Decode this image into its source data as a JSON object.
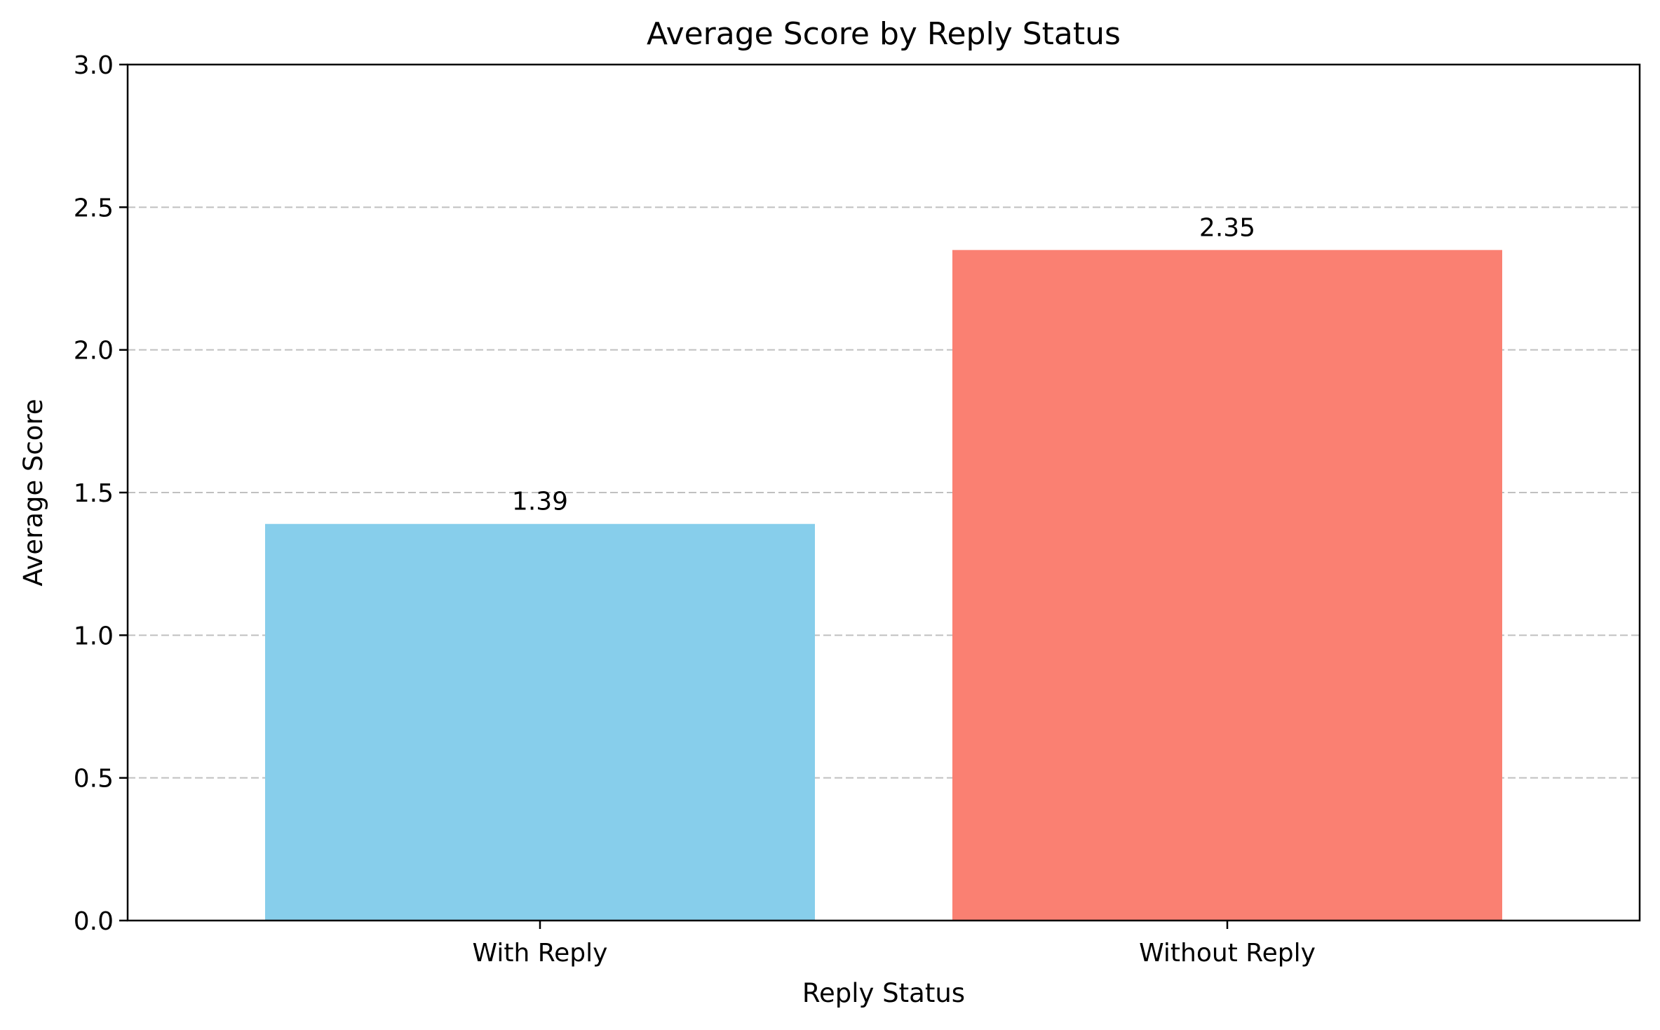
{
  "chart_data": {
    "type": "bar",
    "title": "Average Score by Reply Status",
    "xlabel": "Reply Status",
    "ylabel": "Average Score",
    "categories": [
      "With Reply",
      "Without Reply"
    ],
    "values": [
      1.39,
      2.35
    ],
    "value_labels": [
      "1.39",
      "2.35"
    ],
    "colors": [
      "#87CEEB",
      "#FA8072"
    ],
    "ylim": [
      0,
      3.0
    ],
    "yticks": [
      0.0,
      0.5,
      1.0,
      1.5,
      2.0,
      2.5,
      3.0
    ],
    "ytick_labels": [
      "0.0",
      "0.5",
      "1.0",
      "1.5",
      "2.0",
      "2.5",
      "3.0"
    ],
    "grid": {
      "axis": "y",
      "style": "dashed",
      "color": "#c0c0c0"
    },
    "legend": "none"
  }
}
